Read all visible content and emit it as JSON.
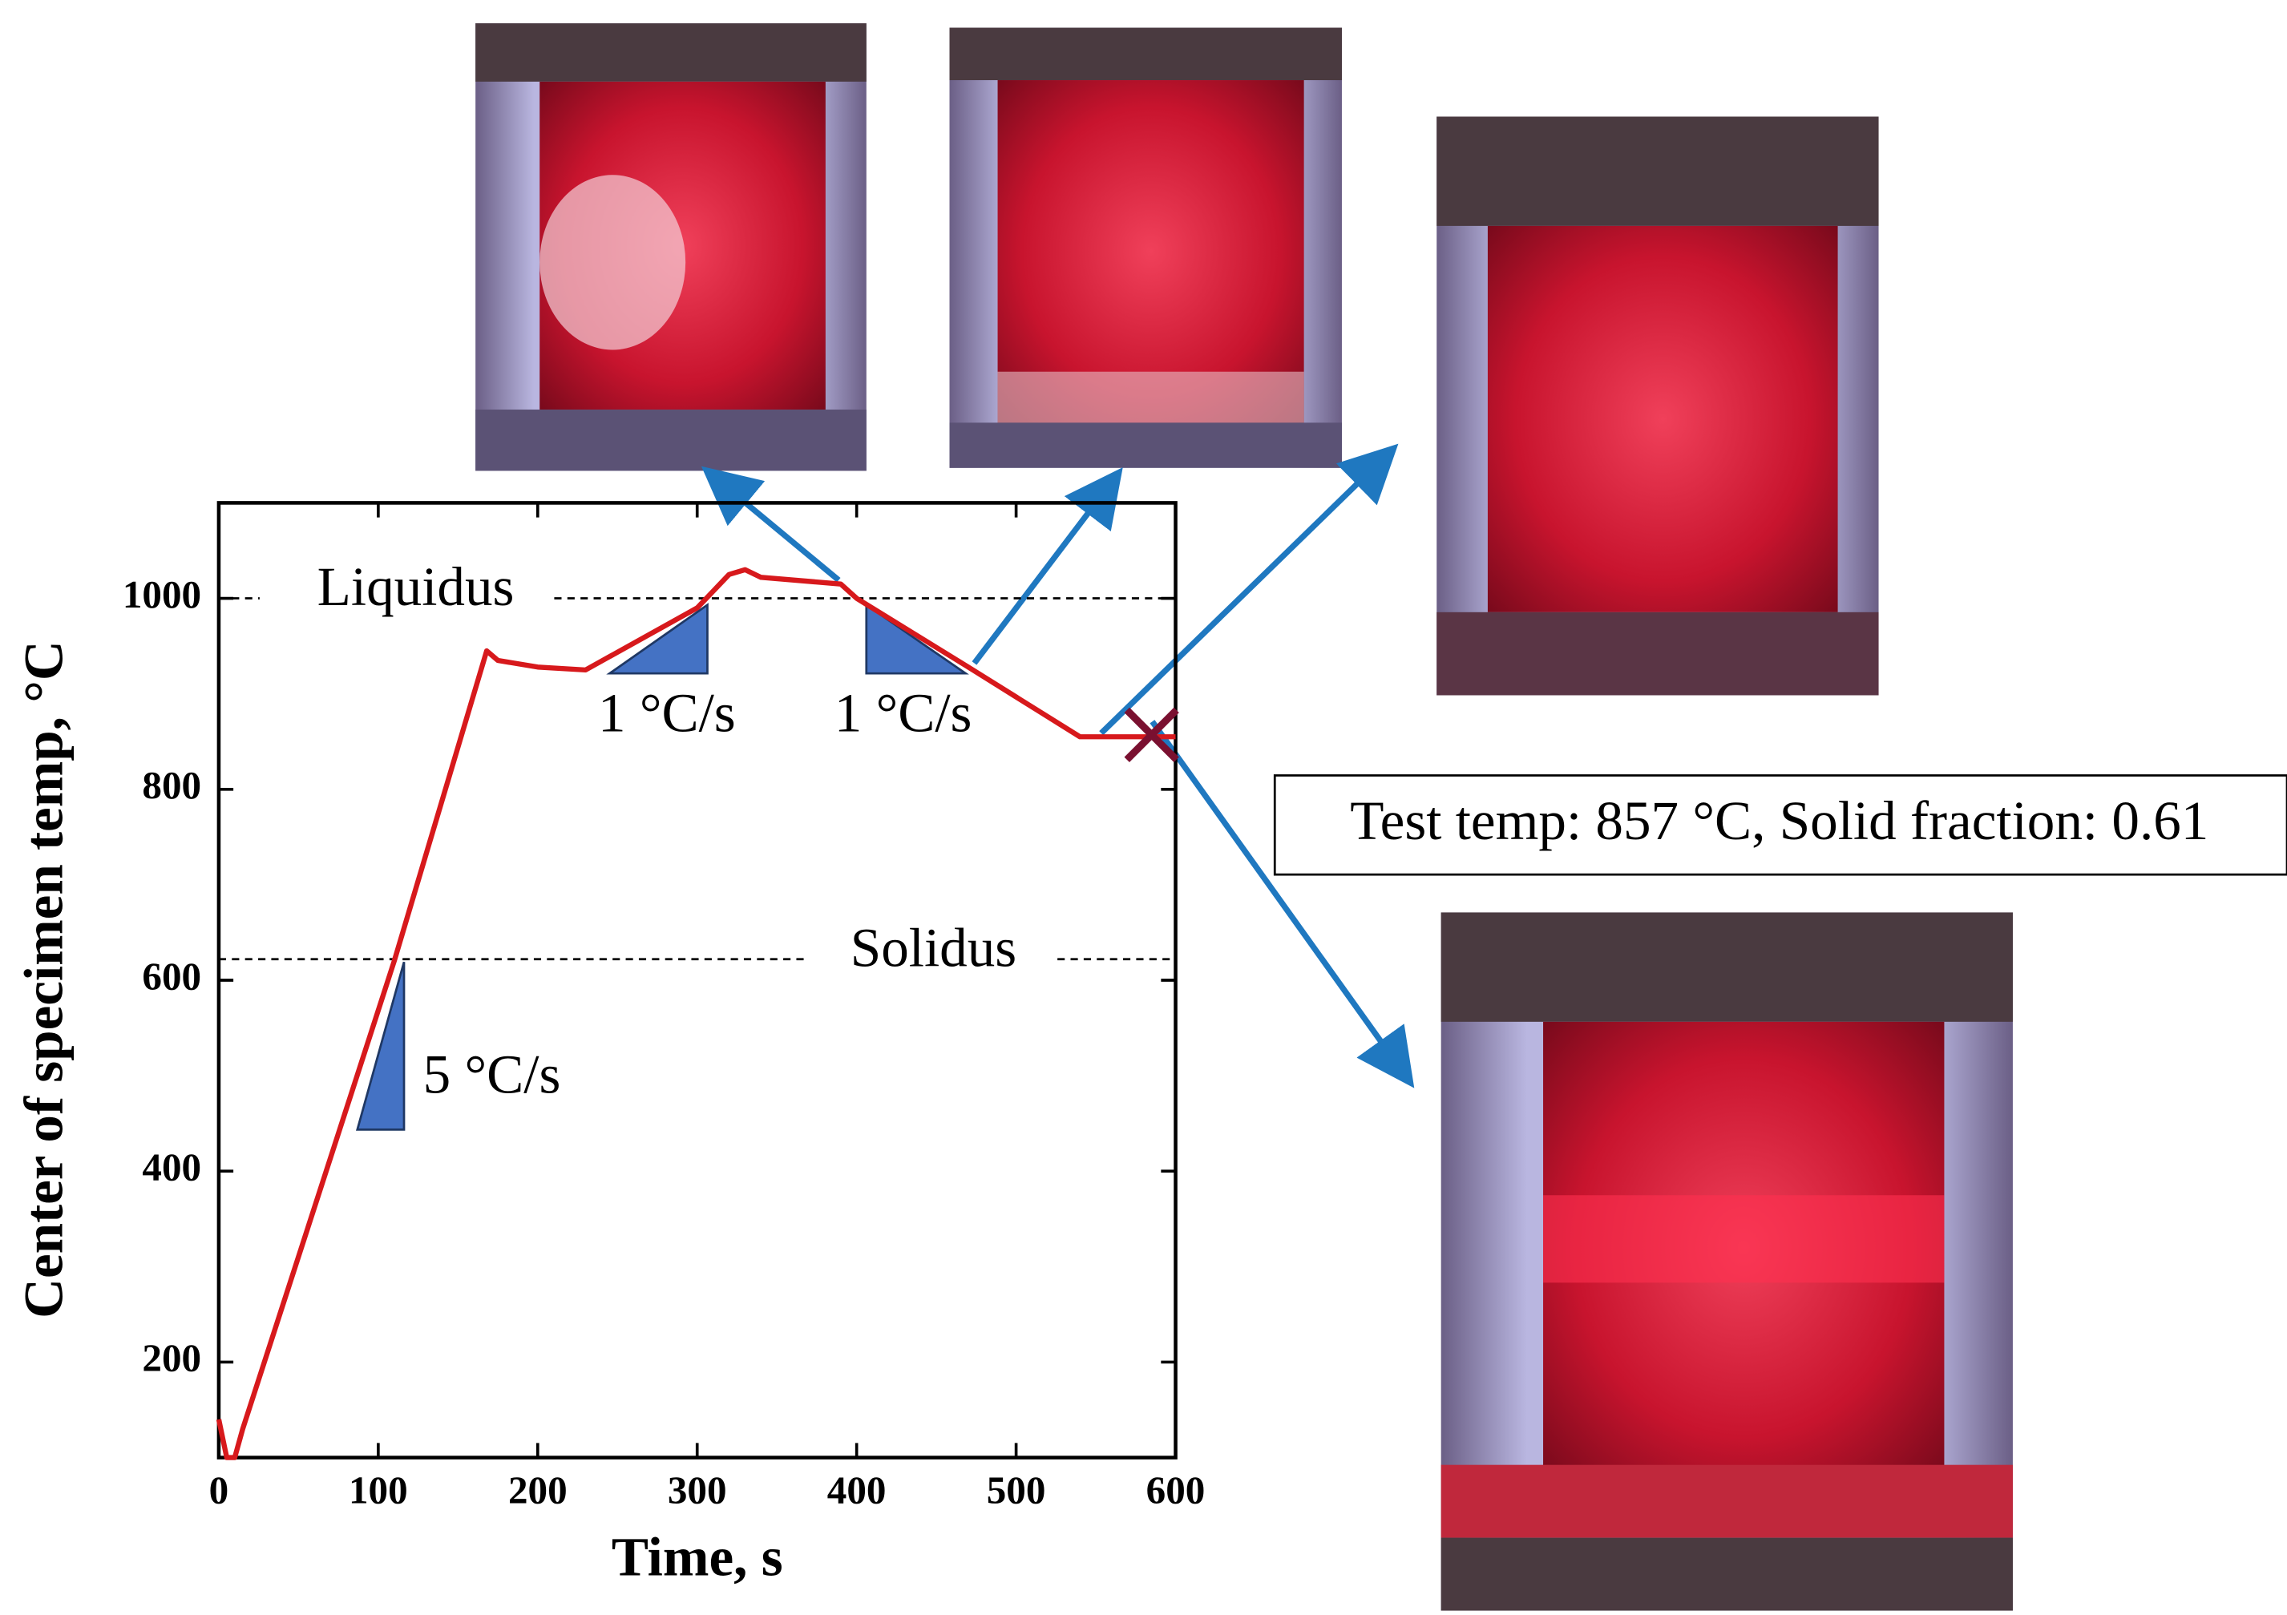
{
  "chart_data": {
    "type": "line",
    "xlabel": "Time, s",
    "ylabel": "Center of specimen temp, °C",
    "x": [
      0,
      5,
      10,
      15,
      110,
      168,
      175,
      200,
      230,
      300,
      320,
      330,
      340,
      390,
      400,
      470,
      540,
      600
    ],
    "values": [
      140,
      100,
      100,
      130,
      620,
      945,
      935,
      928,
      925,
      990,
      1025,
      1030,
      1022,
      1015,
      1000,
      928,
      855,
      855
    ],
    "color": "#d7191c",
    "xlim": [
      0,
      600
    ],
    "xticks": [
      0,
      100,
      200,
      300,
      400,
      500,
      600
    ],
    "ylim": [
      100,
      1100
    ],
    "yticks": [
      200,
      400,
      600,
      800,
      1000
    ],
    "reference_lines": [
      {
        "label": "Liquidus",
        "value": 1000
      },
      {
        "label": "Solidus",
        "value": 622
      }
    ],
    "slope_labels": [
      "1 °C/s",
      "1 °C/s",
      "5 °C/s"
    ],
    "test_point": {
      "x": 585,
      "y": 857
    },
    "test_label": "Test temp: 857 °C, Solid fraction: 0.61"
  }
}
